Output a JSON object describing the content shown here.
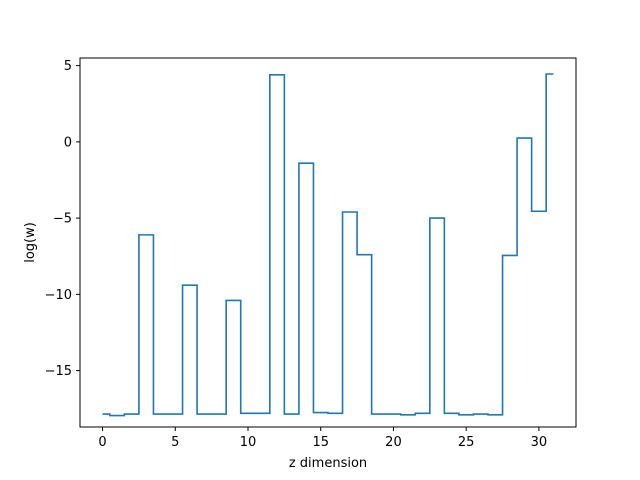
{
  "chart_data": {
    "type": "line",
    "drawstyle": "steps-mid",
    "title": "",
    "xlabel": "z dimension",
    "ylabel": "log(w)",
    "xlim": [
      -1.55,
      32.55
    ],
    "ylim": [
      -18.7,
      5.5
    ],
    "grid": false,
    "legend": false,
    "x_ticks": [
      0,
      5,
      10,
      15,
      20,
      25,
      30
    ],
    "x_tick_labels": [
      "0",
      "5",
      "10",
      "15",
      "20",
      "25",
      "30"
    ],
    "y_ticks": [
      5,
      0,
      -5,
      -10,
      -15
    ],
    "y_tick_labels": [
      "5",
      "0",
      "−5",
      "−10",
      "−15"
    ],
    "series": [
      {
        "color": "#1f77b4",
        "x": [
          0,
          1,
          2,
          3,
          4,
          5,
          6,
          7,
          8,
          9,
          10,
          11,
          12,
          13,
          14,
          15,
          16,
          17,
          18,
          19,
          20,
          21,
          22,
          23,
          24,
          25,
          26,
          27,
          28,
          29,
          30,
          31
        ],
        "y": [
          -17.85,
          -17.95,
          -17.85,
          -6.1,
          -17.85,
          -17.85,
          -9.4,
          -17.85,
          -17.85,
          -10.4,
          -17.8,
          -17.8,
          4.4,
          -17.85,
          -1.4,
          -17.75,
          -17.8,
          -4.6,
          -7.4,
          -17.85,
          -17.85,
          -17.9,
          -17.8,
          -5.0,
          -17.8,
          -17.9,
          -17.85,
          -17.9,
          -7.45,
          0.25,
          -4.55,
          4.45
        ]
      }
    ]
  }
}
